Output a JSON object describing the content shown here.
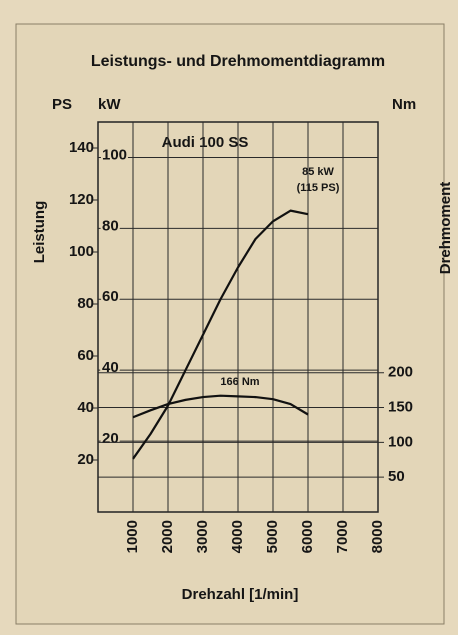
{
  "chart_data": {
    "type": "line",
    "title": "Leistungs- und Drehmomentdiagramm",
    "subtitle": "Audi 100 SS",
    "xlabel": "Drehzahl [1/min]",
    "ylabel": "Leistung",
    "y3label": "Drehmoment",
    "y_unit": "kW",
    "y2_unit": "PS",
    "y3_unit": "Nm",
    "x": [
      1000,
      1500,
      2000,
      2500,
      3000,
      3500,
      4000,
      4500,
      5000,
      5500,
      6000
    ],
    "xlim": [
      0,
      8000
    ],
    "xticks": [
      1000,
      2000,
      3000,
      4000,
      5000,
      6000,
      7000,
      8000
    ],
    "ylim": [
      0,
      110
    ],
    "yticks": [
      20,
      40,
      60,
      80,
      100
    ],
    "y2lim": [
      0,
      150
    ],
    "y2ticks": [
      20,
      40,
      60,
      80,
      100,
      120,
      140
    ],
    "y3lim": [
      0,
      560
    ],
    "y3ticks": [
      50,
      100,
      150,
      200
    ],
    "grid": true,
    "series": [
      {
        "name": "Leistung",
        "color": "#111111",
        "axis": "y",
        "values": [
          15,
          22,
          30,
          40,
          50,
          60,
          69,
          77,
          82,
          85,
          84
        ]
      },
      {
        "name": "Drehmoment",
        "color": "#111111",
        "axis": "y3",
        "values": [
          136,
          146,
          155,
          161,
          165,
          167,
          166,
          165,
          162,
          155,
          140
        ]
      }
    ],
    "annotations": [
      "85 kW",
      "(115 PS)",
      "166 Nm"
    ]
  }
}
